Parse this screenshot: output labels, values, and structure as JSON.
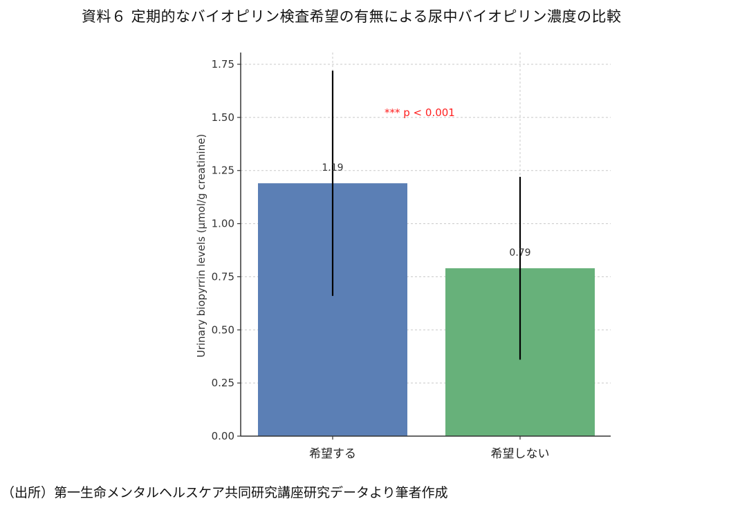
{
  "document": {
    "title": "資料６ 定期的なバイオピリン検査希望の有無による尿中バイオピリン濃度の比較",
    "source": "（出所）第一生命メンタルヘルスケア共同研究講座研究データより筆者作成"
  },
  "chart_data": {
    "type": "bar",
    "title": "資料６ 定期的なバイオピリン検査希望の有無による尿中バイオピリン濃度の比較",
    "xlabel": "",
    "ylabel": "Urinary biopyrrin levels (μmol/g creatinine)",
    "categories": [
      "希望する",
      "希望しない"
    ],
    "values": [
      1.19,
      0.79
    ],
    "value_labels": [
      "1.19",
      "0.79"
    ],
    "error_bars": [
      0.53,
      0.43
    ],
    "colors": [
      "#5b7fb5",
      "#67b17a"
    ],
    "ylim": [
      0,
      1.8
    ],
    "yticks": [
      0.0,
      0.25,
      0.5,
      0.75,
      1.0,
      1.25,
      1.5,
      1.75
    ],
    "ytick_labels": [
      "0.00",
      "0.25",
      "0.50",
      "0.75",
      "1.00",
      "1.25",
      "1.50",
      "1.75"
    ],
    "grid": true,
    "annotation": {
      "text": "*** p < 0.001",
      "color": "#ff2020"
    },
    "legend": null
  }
}
